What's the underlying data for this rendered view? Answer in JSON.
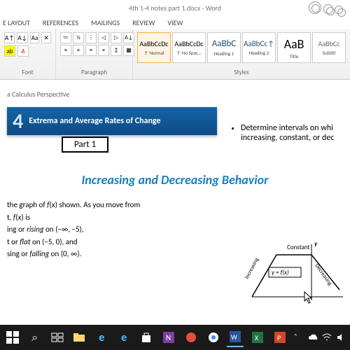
{
  "window": {
    "title": "4th 1-4 notes part 1.docx - Word"
  },
  "ribbon": {
    "tabs": [
      "E LAYOUT",
      "REFERENCES",
      "MAILINGS",
      "REVIEW",
      "VIEW"
    ],
    "groups": {
      "font": "Font",
      "paragraph": "Paragraph",
      "styles": "Styles"
    },
    "style_gallery": [
      {
        "preview": "AaBbCcDc",
        "name": "↑ Normal",
        "selected": true,
        "size": "10px"
      },
      {
        "preview": "AaBbCcDc",
        "name": "↑ No Spac...",
        "size": "10px"
      },
      {
        "preview": "AaBbC",
        "name": "Heading 1",
        "size": "13px",
        "color": "#1e4e79"
      },
      {
        "preview": "AaBbCc↑",
        "name": "Heading 2",
        "size": "11px",
        "color": "#1e4e79"
      },
      {
        "preview": "AaB",
        "name": "Title",
        "size": "18px"
      },
      {
        "preview": "AaBbCc",
        "name": "Subtitl",
        "size": "10px",
        "color": "#666"
      }
    ]
  },
  "document": {
    "chapter_heading": "a Calculus Perspective",
    "banner_number": "4",
    "banner_title": "Extrema and Average Rates of Change",
    "part_label": "Part 1",
    "bullet_text": "Determine intervals on whi\nincreasing, constant, or dec",
    "section_title": "Increasing and Decreasing Behavior",
    "body": [
      "the graph of f(x) shown. As you move from",
      "t, f(x) is",
      "ing or rising on (−∞, −5),",
      "t or flat on (−5, 0), and",
      "sing or falling on (0, ∞)."
    ],
    "graph": {
      "label_constant": "Constant",
      "label_increasing": "Increasing",
      "label_decreasing": "Decreasing",
      "eq": "y = f(x)",
      "y_axis": "y"
    }
  },
  "colors": {
    "ribbon_accent": "#2b579a",
    "banner_top": "#1565a8",
    "banner_bottom": "#0d4a82",
    "section_blue": "#1780c4"
  }
}
